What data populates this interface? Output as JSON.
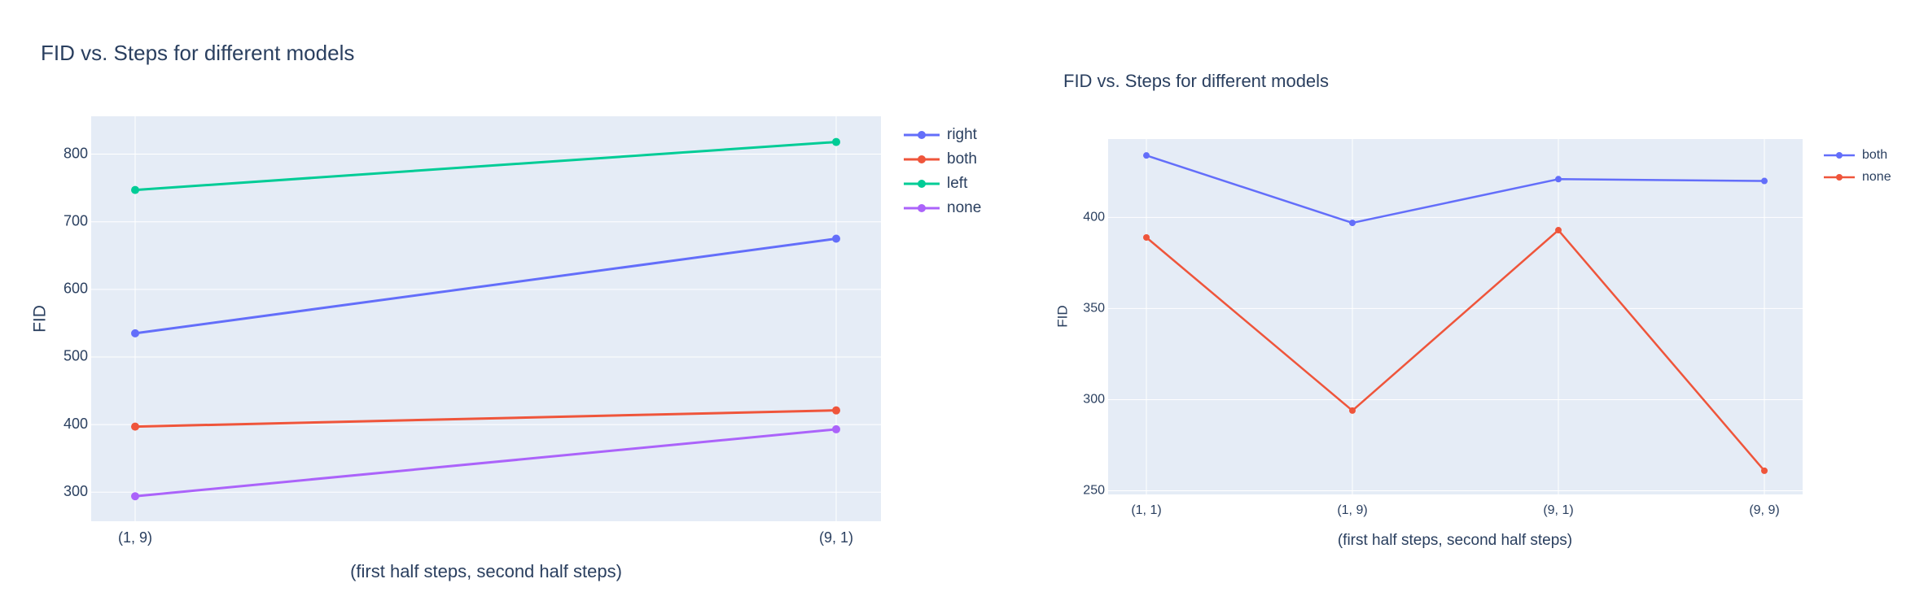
{
  "theme": {
    "plot_bg": "#E5ECF6",
    "grid": "#FFFFFF",
    "text": "#2A3F5F"
  },
  "chart_data": [
    {
      "type": "line",
      "title": "FID vs. Steps for different models",
      "xlabel": "(first half steps, second half steps)",
      "ylabel": "FID",
      "categories": [
        "(1, 9)",
        "(9, 1)"
      ],
      "ylim": [
        257,
        856
      ],
      "yticks": [
        300,
        400,
        500,
        600,
        700,
        800
      ],
      "grid": true,
      "legend_position": "right",
      "series": [
        {
          "name": "right",
          "color": "#636EFA",
          "values": [
            535,
            675
          ]
        },
        {
          "name": "both",
          "color": "#EF553B",
          "values": [
            397,
            421
          ]
        },
        {
          "name": "left",
          "color": "#00CC96",
          "values": [
            747,
            818
          ]
        },
        {
          "name": "none",
          "color": "#AB63FA",
          "values": [
            294,
            393
          ]
        }
      ]
    },
    {
      "type": "line",
      "title": "FID vs. Steps for different models",
      "xlabel": "(first half steps, second half steps)",
      "ylabel": "FID",
      "categories": [
        "(1, 1)",
        "(1, 9)",
        "(9, 1)",
        "(9, 9)"
      ],
      "ylim": [
        248,
        443
      ],
      "yticks": [
        250,
        300,
        350,
        400
      ],
      "grid": true,
      "legend_position": "right",
      "series": [
        {
          "name": "both",
          "color": "#636EFA",
          "values": [
            434,
            397,
            421,
            420
          ]
        },
        {
          "name": "none",
          "color": "#EF553B",
          "values": [
            389,
            294,
            393,
            261
          ]
        }
      ]
    }
  ]
}
